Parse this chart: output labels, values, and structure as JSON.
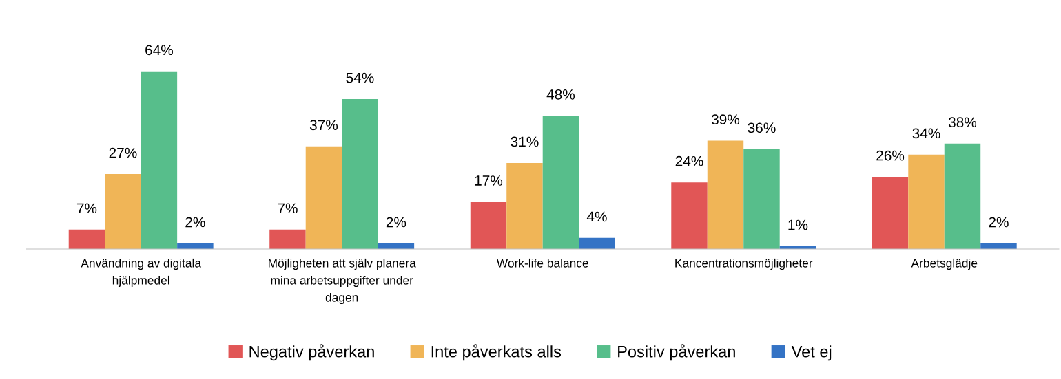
{
  "chart_data": {
    "type": "bar",
    "categories": [
      "Användning av digitala\nhjälpmedel",
      "Möjligheten att själv planera\nmina arbetsuppgifter under\ndagen",
      "Work-life balance",
      "Kancentrationsmöjligheter",
      "Arbetsglädje"
    ],
    "series": [
      {
        "name": "Negativ påverkan",
        "color": "#e15656",
        "values": [
          7,
          7,
          17,
          24,
          26
        ],
        "value_labels": [
          "7%",
          "7%",
          "17%",
          "24%",
          "26%"
        ]
      },
      {
        "name": "Inte påverkats alls",
        "color": "#f0b557",
        "values": [
          27,
          37,
          31,
          39,
          34
        ],
        "value_labels": [
          "27%",
          "37%",
          "31%",
          "39%",
          "34%"
        ]
      },
      {
        "name": "Positiv påverkan",
        "color": "#57be8b",
        "values": [
          64,
          54,
          48,
          36,
          38
        ],
        "value_labels": [
          "64%",
          "54%",
          "48%",
          "36%",
          "38%"
        ]
      },
      {
        "name": "Vet ej",
        "color": "#3473c5",
        "values": [
          2,
          2,
          4,
          1,
          2
        ],
        "value_labels": [
          "2%",
          "2%",
          "4%",
          "1%",
          "2%"
        ]
      }
    ],
    "legend": "bottom",
    "grid": false
  }
}
